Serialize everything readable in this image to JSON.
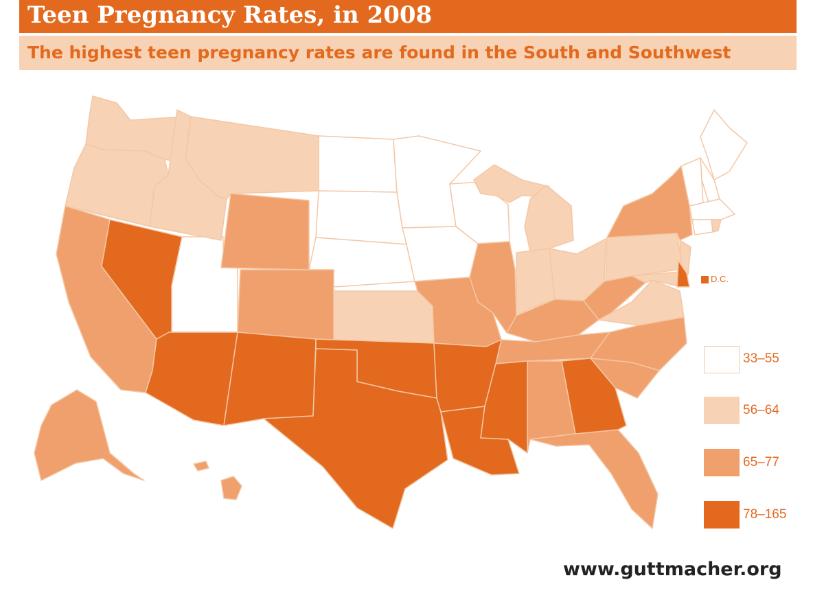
{
  "header": {
    "title": "Teen Pregnancy Rates, in 2008",
    "subtitle": "The highest teen pregnancy rates are found in the South and Southwest"
  },
  "colors": {
    "bin1": "#ffffff",
    "bin2": "#f8d2b4",
    "bin3": "#f0a06c",
    "bin4": "#e2691e",
    "border": "#f3c7a6"
  },
  "legend": [
    {
      "label": "33–55",
      "color": "#ffffff"
    },
    {
      "label": "56–64",
      "color": "#f8d2b4"
    },
    {
      "label": "65–77",
      "color": "#f0a06c"
    },
    {
      "label": "78–165",
      "color": "#e2691e"
    }
  ],
  "dc_label": "D.C.",
  "footer": "www.guttmacher.org"
}
